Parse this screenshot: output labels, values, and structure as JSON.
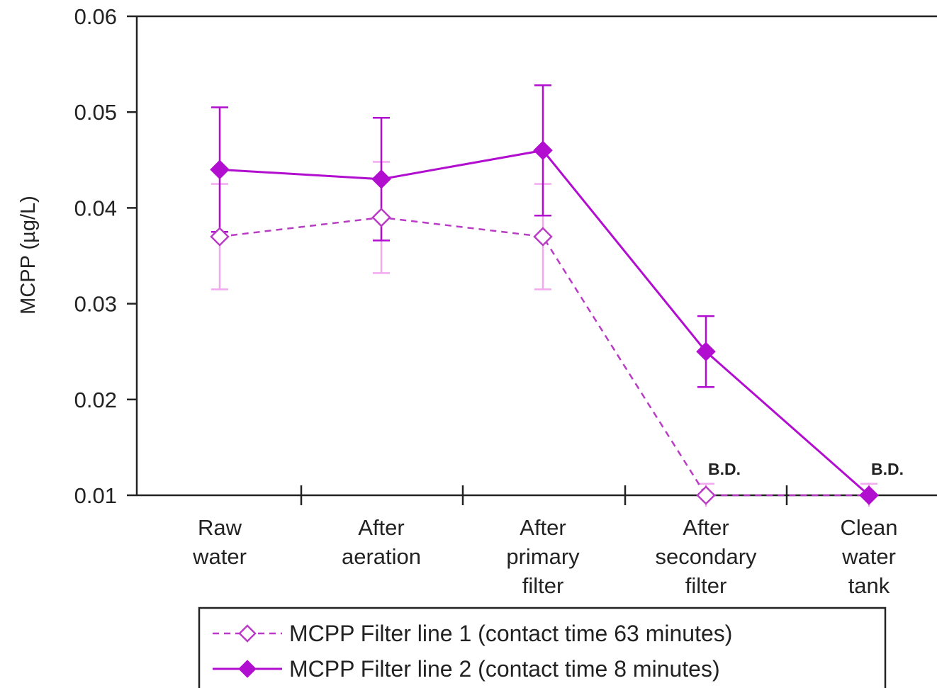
{
  "chart_data": {
    "type": "line",
    "title": "",
    "xlabel": "",
    "ylabel": "MCPP (µg/L)",
    "ylim": [
      0.01,
      0.06
    ],
    "yticks": [
      "0.01",
      "0.02",
      "0.03",
      "0.04",
      "0.05",
      "0.06"
    ],
    "categories": [
      [
        "Raw",
        "water"
      ],
      [
        "After",
        "aeration"
      ],
      [
        "After",
        "primary",
        "filter"
      ],
      [
        "After",
        "secondary",
        "filter"
      ],
      [
        "Clean",
        "water",
        "tank"
      ]
    ],
    "series": [
      {
        "name": "MCPP Filter line 1 (contact time 63 minutes)",
        "values": [
          0.037,
          0.039,
          0.037,
          0.01,
          0.01
        ],
        "error": [
          0.0055,
          0.0058,
          0.0055,
          0.0012,
          0.0012
        ],
        "line_style": "dashed",
        "marker": "open-diamond",
        "color": "#b93cc4",
        "error_color": "#f2a9f0"
      },
      {
        "name": "MCPP Filter line 2 (contact time   8 minutes)",
        "values": [
          0.044,
          0.043,
          0.046,
          0.025,
          0.01
        ],
        "error": [
          0.0065,
          0.0064,
          0.0068,
          0.0037,
          0.0
        ],
        "line_style": "solid",
        "marker": "filled-diamond",
        "color": "#b10ecf",
        "error_color": "#b10ecf"
      }
    ],
    "annotations": [
      {
        "category_index": 3,
        "text": "B.D."
      },
      {
        "category_index": 4,
        "text": "B.D."
      }
    ],
    "grid": false,
    "legend_position": "bottom"
  }
}
